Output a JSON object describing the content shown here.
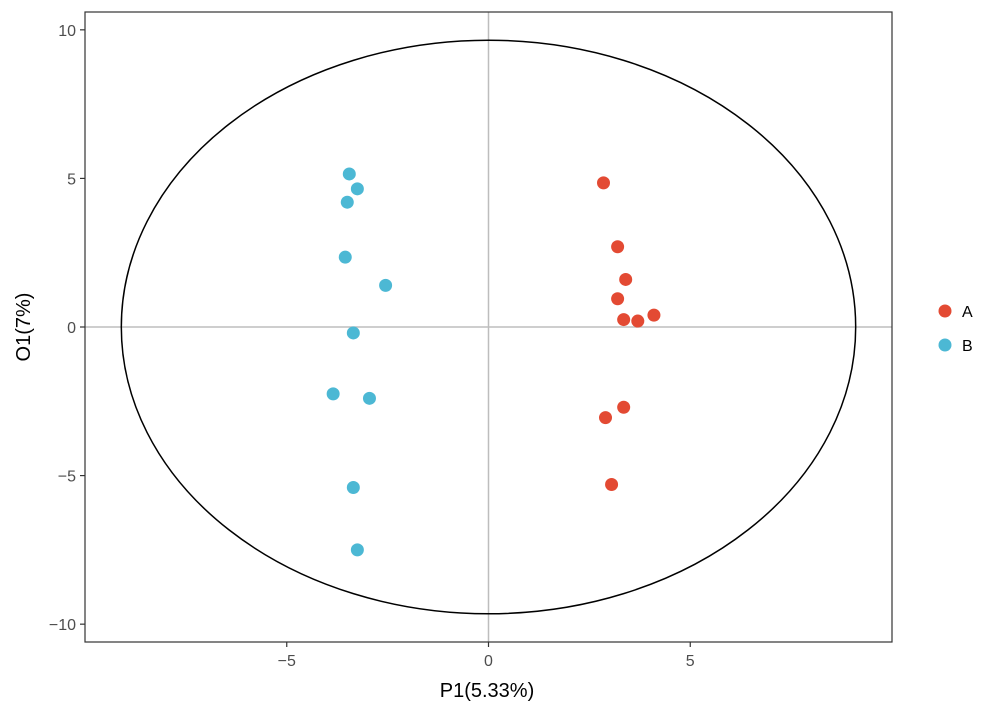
{
  "chart_data": {
    "type": "scatter",
    "title": "",
    "xlabel": "P1(5.33%)",
    "ylabel": "O1(7%)",
    "xlim": [
      -10,
      10
    ],
    "ylim": [
      -10.6,
      10.6
    ],
    "xticks": [
      -5,
      0,
      5
    ],
    "xtick_labels": [
      "−5",
      "0",
      "5"
    ],
    "yticks": [
      10,
      5,
      0,
      -5,
      -10
    ],
    "ytick_labels": [
      "10",
      "5",
      "0",
      "−5",
      "−10"
    ],
    "grid": false,
    "reference_lines": {
      "x": 0,
      "y": 0
    },
    "ellipse": {
      "cx": 0,
      "cy": 0,
      "rx": 9.1,
      "ry": 9.65
    },
    "legend": {
      "placement": "right"
    },
    "series": [
      {
        "name": "A",
        "color": "#e34a33",
        "points": [
          {
            "x": 2.85,
            "y": 4.85
          },
          {
            "x": 3.2,
            "y": 2.7
          },
          {
            "x": 3.4,
            "y": 1.6
          },
          {
            "x": 3.2,
            "y": 0.95
          },
          {
            "x": 3.35,
            "y": 0.25
          },
          {
            "x": 3.7,
            "y": 0.2
          },
          {
            "x": 4.1,
            "y": 0.4
          },
          {
            "x": 3.35,
            "y": -2.7
          },
          {
            "x": 2.9,
            "y": -3.05
          },
          {
            "x": 3.05,
            "y": -5.3
          }
        ]
      },
      {
        "name": "B",
        "color": "#4cb8d4",
        "points": [
          {
            "x": -3.45,
            "y": 5.15
          },
          {
            "x": -3.25,
            "y": 4.65
          },
          {
            "x": -3.5,
            "y": 4.2
          },
          {
            "x": -3.55,
            "y": 2.35
          },
          {
            "x": -2.55,
            "y": 1.4
          },
          {
            "x": -3.35,
            "y": -0.2
          },
          {
            "x": -3.85,
            "y": -2.25
          },
          {
            "x": -2.95,
            "y": -2.4
          },
          {
            "x": -3.35,
            "y": -5.4
          },
          {
            "x": -3.25,
            "y": -7.5
          }
        ]
      }
    ]
  }
}
